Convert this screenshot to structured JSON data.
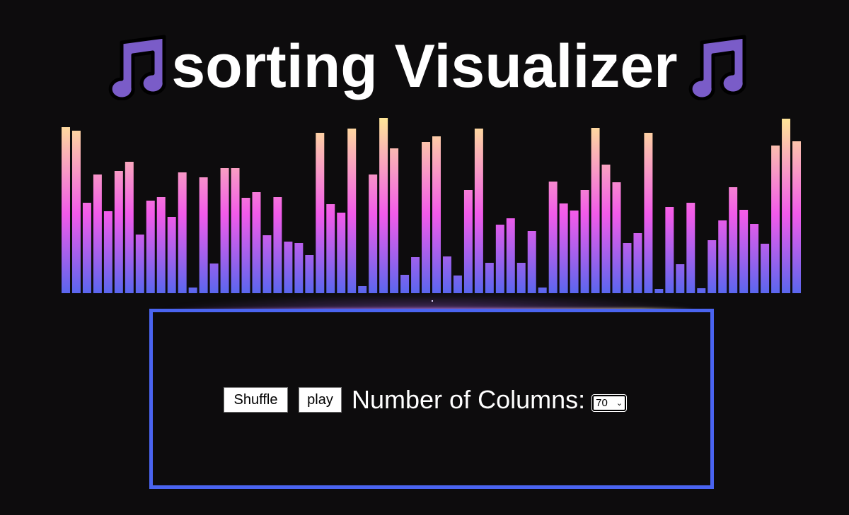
{
  "title": {
    "text": "sorting Visualizer",
    "icon_left": "music-note-icon",
    "icon_right": "music-note-icon"
  },
  "bars": {
    "count": 70,
    "values": [
      235,
      230,
      128,
      168,
      116,
      173,
      186,
      83,
      131,
      136,
      108,
      171,
      8,
      164,
      42,
      177,
      177,
      135,
      143,
      82,
      136,
      73,
      71,
      54,
      227,
      126,
      114,
      233,
      10,
      168,
      248,
      205,
      26,
      51,
      214,
      222,
      52,
      25,
      146,
      233,
      43,
      97,
      106,
      43,
      88,
      8,
      158,
      127,
      117,
      146,
      234,
      182,
      157,
      71,
      85,
      227,
      6,
      122,
      41,
      128,
      7,
      75,
      103,
      150,
      118,
      98,
      70,
      209,
      247,
      215
    ],
    "gradient": [
      "#5a66ee",
      "#f25bea",
      "#ffe796"
    ]
  },
  "controls": {
    "shuffle_label": "Shuffle",
    "play_label": "play",
    "columns_label": "Number of Columns:",
    "columns_selected": "70"
  },
  "colors": {
    "background": "#0d0c0d",
    "panel_border": "#4a64f0",
    "note_fill": "#7a5cc8"
  }
}
